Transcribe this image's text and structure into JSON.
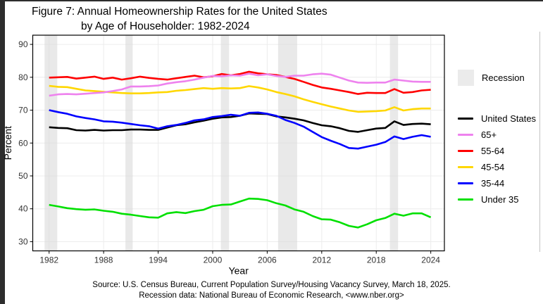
{
  "title": {
    "line1": "Figure 7: Annual Homeownership Rates for the United States",
    "line2": "by Age of Householder: 1982-2024"
  },
  "legend": {
    "recession_label": "Recession"
  },
  "source": {
    "line1": "Source: U.S. Census Bureau, Current Population Survey/Housing Vacancy Survey, March 18, 2025.",
    "line2": "Recession data: National Bureau of Economic Research, <www.nber.org>"
  },
  "chart_data": {
    "type": "line",
    "title": "Figure 7: Annual Homeownership Rates for the United States by Age of Householder: 1982-2024",
    "xlabel": "Year",
    "ylabel": "Percent",
    "xlim": [
      1980.2,
      2025.5
    ],
    "ylim": [
      27.2,
      92.8
    ],
    "x_ticks": [
      1982,
      1988,
      1994,
      2000,
      2006,
      2012,
      2018,
      2024
    ],
    "y_ticks": [
      30,
      40,
      50,
      60,
      70,
      80,
      90
    ],
    "grid": true,
    "legend_position": "right",
    "panel_border": "#000000",
    "grid_color": "#ECECEC",
    "recession_color": "#DADADA",
    "recession_bands": [
      [
        1981.5,
        1982.9
      ],
      [
        1990.4,
        1991.2
      ],
      [
        2000.9,
        2001.8
      ],
      [
        2007.2,
        2009.3
      ],
      [
        2019.5,
        2020.4
      ]
    ],
    "years": [
      1982,
      1983,
      1984,
      1985,
      1986,
      1987,
      1988,
      1989,
      1990,
      1991,
      1992,
      1993,
      1994,
      1995,
      1996,
      1997,
      1998,
      1999,
      2000,
      2001,
      2002,
      2003,
      2004,
      2005,
      2006,
      2007,
      2008,
      2009,
      2010,
      2011,
      2012,
      2013,
      2014,
      2015,
      2016,
      2017,
      2018,
      2019,
      2020,
      2021,
      2022,
      2023,
      2024
    ],
    "series": [
      {
        "name": "United States",
        "color": "#000000",
        "values": [
          64.8,
          64.6,
          64.5,
          63.9,
          63.8,
          64.0,
          63.8,
          63.9,
          63.9,
          64.1,
          64.1,
          64.0,
          64.0,
          64.7,
          65.4,
          65.7,
          66.3,
          66.8,
          67.4,
          67.8,
          67.9,
          68.3,
          69.0,
          68.9,
          68.8,
          68.1,
          67.8,
          67.4,
          66.9,
          66.1,
          65.4,
          65.1,
          64.5,
          63.7,
          63.4,
          63.9,
          64.4,
          64.6,
          66.6,
          65.5,
          65.8,
          65.9,
          65.7
        ]
      },
      {
        "name": "65+",
        "color": "#EE82EE",
        "values": [
          74.4,
          74.8,
          74.9,
          74.8,
          75.0,
          75.2,
          75.4,
          75.8,
          76.3,
          77.2,
          77.2,
          77.3,
          77.5,
          78.1,
          78.5,
          78.8,
          79.3,
          79.9,
          80.4,
          80.3,
          80.6,
          80.5,
          81.1,
          80.6,
          80.9,
          80.4,
          80.1,
          80.5,
          80.5,
          80.9,
          81.1,
          80.8,
          79.9,
          79.0,
          78.4,
          78.3,
          78.4,
          78.4,
          79.3,
          79.0,
          78.7,
          78.6,
          78.6
        ]
      },
      {
        "name": "55-64",
        "color": "#FF0000",
        "values": [
          79.9,
          80.0,
          80.1,
          79.6,
          79.9,
          80.2,
          79.5,
          79.9,
          79.3,
          79.7,
          80.2,
          79.8,
          79.5,
          79.3,
          79.7,
          80.1,
          80.5,
          80.0,
          80.3,
          81.0,
          80.6,
          81.0,
          81.7,
          81.2,
          80.9,
          80.7,
          80.1,
          79.5,
          78.6,
          77.7,
          76.9,
          76.5,
          76.0,
          75.5,
          74.9,
          75.3,
          75.2,
          75.2,
          76.4,
          75.3,
          75.5,
          76.0,
          76.2
        ]
      },
      {
        "name": "45-54",
        "color": "#FFD700",
        "values": [
          77.4,
          77.1,
          77.0,
          76.5,
          76.0,
          75.8,
          75.6,
          75.4,
          75.2,
          75.1,
          75.1,
          75.2,
          75.4,
          75.5,
          75.9,
          76.1,
          76.4,
          76.7,
          76.5,
          76.7,
          76.6,
          76.7,
          77.3,
          76.9,
          76.3,
          75.5,
          74.9,
          74.2,
          73.3,
          72.5,
          71.8,
          71.1,
          70.5,
          69.9,
          69.5,
          69.6,
          69.7,
          69.9,
          70.9,
          69.9,
          70.3,
          70.5,
          70.5
        ]
      },
      {
        "name": "35-44",
        "color": "#0000FF",
        "values": [
          70.0,
          69.4,
          68.9,
          68.1,
          67.6,
          67.2,
          66.6,
          66.5,
          66.2,
          65.8,
          65.4,
          65.1,
          64.4,
          65.1,
          65.5,
          66.1,
          66.9,
          67.2,
          67.9,
          68.2,
          68.6,
          68.3,
          69.2,
          69.3,
          68.9,
          68.3,
          67.0,
          66.1,
          65.0,
          63.4,
          61.8,
          60.7,
          59.7,
          58.5,
          58.3,
          58.9,
          59.5,
          60.3,
          62.0,
          61.2,
          61.9,
          62.4,
          61.9
        ]
      },
      {
        "name": "Under 35",
        "color": "#00E000",
        "values": [
          41.2,
          40.7,
          40.2,
          39.9,
          39.7,
          39.8,
          39.4,
          39.1,
          38.5,
          38.2,
          37.8,
          37.4,
          37.3,
          38.6,
          39.0,
          38.7,
          39.3,
          39.7,
          40.8,
          41.2,
          41.3,
          42.2,
          43.1,
          43.0,
          42.6,
          41.7,
          41.0,
          39.8,
          39.1,
          37.8,
          36.8,
          36.7,
          35.9,
          34.8,
          34.3,
          35.3,
          36.5,
          37.2,
          38.5,
          37.9,
          38.6,
          38.6,
          37.4
        ]
      }
    ]
  }
}
